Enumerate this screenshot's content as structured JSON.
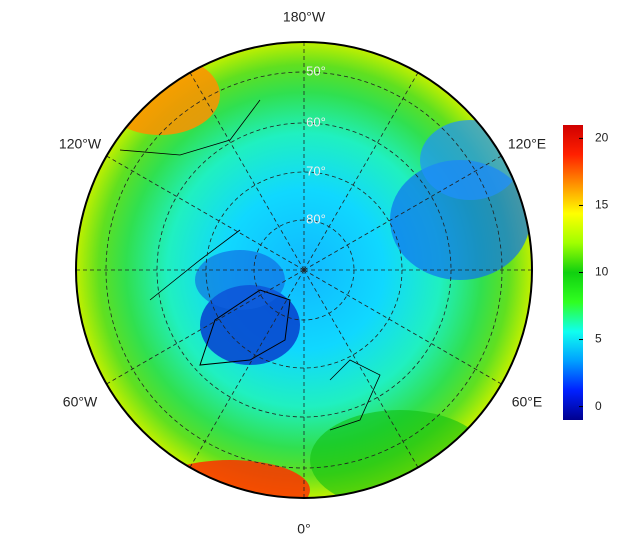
{
  "map": {
    "longitude_labels": [
      "180°W",
      "120°W",
      "120°E",
      "60°W",
      "60°E",
      "0°"
    ],
    "latitude_labels": [
      "50°",
      "60°",
      "70°",
      "80°"
    ],
    "colorbar": {
      "lim": [
        -1,
        21
      ],
      "ticks": [
        0,
        5,
        10,
        15,
        20
      ],
      "colors": [
        "#00008f",
        "#0020ff",
        "#00a0ff",
        "#10ffef",
        "#30ff20",
        "#10d010",
        "#a0ff00",
        "#ffff00",
        "#ff9000",
        "#ff2000",
        "#d00000"
      ]
    }
  }
}
